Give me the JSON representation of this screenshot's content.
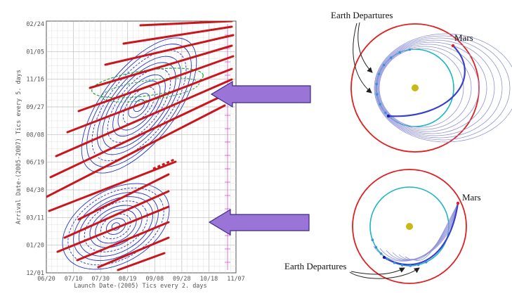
{
  "porkchop": {
    "x_ticks": [
      "06/20",
      "07/10",
      "07/30",
      "08/19",
      "09/08",
      "09/28",
      "10/18",
      "11/07"
    ],
    "y_ticks": [
      "02/24",
      "01/05",
      "11/16",
      "09/27",
      "08/08",
      "06/19",
      "04/30",
      "03/11",
      "01/20",
      "12/01"
    ],
    "x_label": "Launch Date-(2005) Tics every 2. days",
    "y_label": "Arrival Date-(2005-2007) Tics every 5. days"
  },
  "orbit_top": {
    "planet_label": "Mars",
    "departures_label": "Earth Departures"
  },
  "orbit_bottom": {
    "planet_label": "Mars",
    "departures_label": "Earth Departures"
  },
  "colors": {
    "contour": "#2433c6",
    "c3_line": "#c9161c",
    "green_band": "#22a83a",
    "arrow_fill": "#9a74d6",
    "arrow_stroke": "#3f2a86",
    "mars_orbit": "#e02020",
    "earth_orbit": "#19b7c4",
    "sun": "#c8b818",
    "transfer": "#3a40c8"
  }
}
